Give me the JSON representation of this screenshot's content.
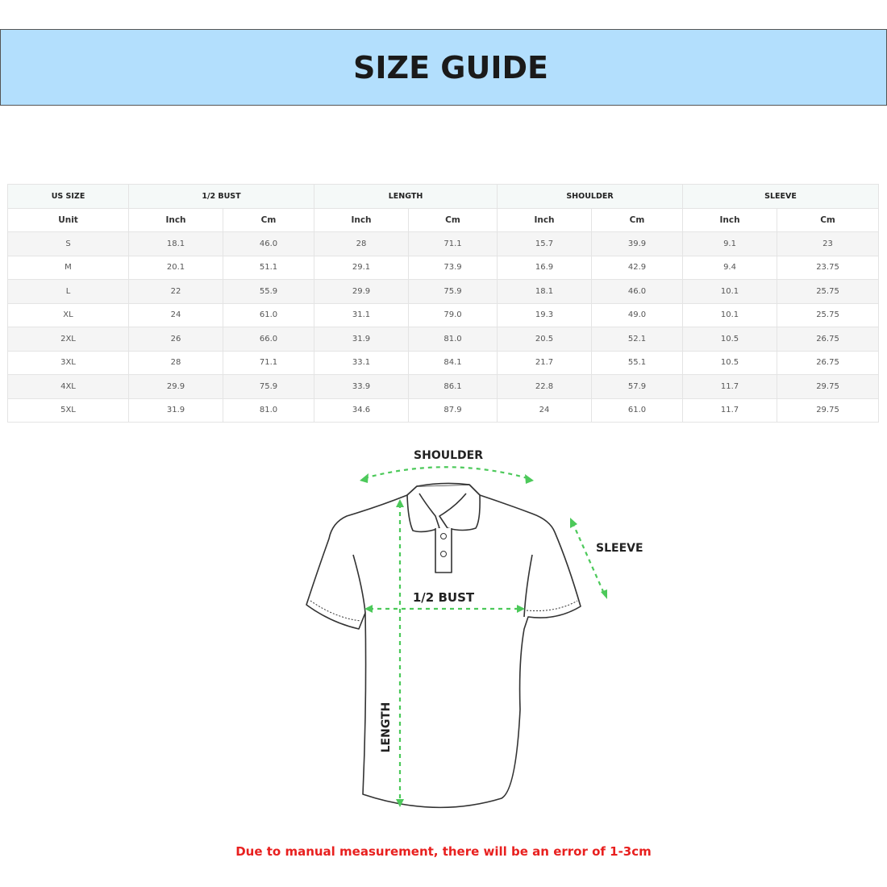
{
  "title": "SIZE GUIDE",
  "table": {
    "groups": [
      "US SIZE",
      "1/2 BUST",
      "LENGTH",
      "SHOULDER",
      "SLEEVE"
    ],
    "unit_label": "Unit",
    "inch": "Inch",
    "cm": "Cm",
    "rows": [
      [
        "S",
        "18.1",
        "46.0",
        "28",
        "71.1",
        "15.7",
        "39.9",
        "9.1",
        "23"
      ],
      [
        "M",
        "20.1",
        "51.1",
        "29.1",
        "73.9",
        "16.9",
        "42.9",
        "9.4",
        "23.75"
      ],
      [
        "L",
        "22",
        "55.9",
        "29.9",
        "75.9",
        "18.1",
        "46.0",
        "10.1",
        "25.75"
      ],
      [
        "XL",
        "24",
        "61.0",
        "31.1",
        "79.0",
        "19.3",
        "49.0",
        "10.1",
        "25.75"
      ],
      [
        "2XL",
        "26",
        "66.0",
        "31.9",
        "81.0",
        "20.5",
        "52.1",
        "10.5",
        "26.75"
      ],
      [
        "3XL",
        "28",
        "71.1",
        "33.1",
        "84.1",
        "21.7",
        "55.1",
        "10.5",
        "26.75"
      ],
      [
        "4XL",
        "29.9",
        "75.9",
        "33.9",
        "86.1",
        "22.8",
        "57.9",
        "11.7",
        "29.75"
      ],
      [
        "5XL",
        "31.9",
        "81.0",
        "34.6",
        "87.9",
        "24",
        "61.0",
        "11.7",
        "29.75"
      ]
    ]
  },
  "diagram": {
    "shoulder": "SHOULDER",
    "sleeve": "SLEEVE",
    "bust": "1/2 BUST",
    "length": "LENGTH",
    "arrow_color": "#4cc95a"
  },
  "note": "Due to manual measurement, there will be an error of 1-3cm"
}
